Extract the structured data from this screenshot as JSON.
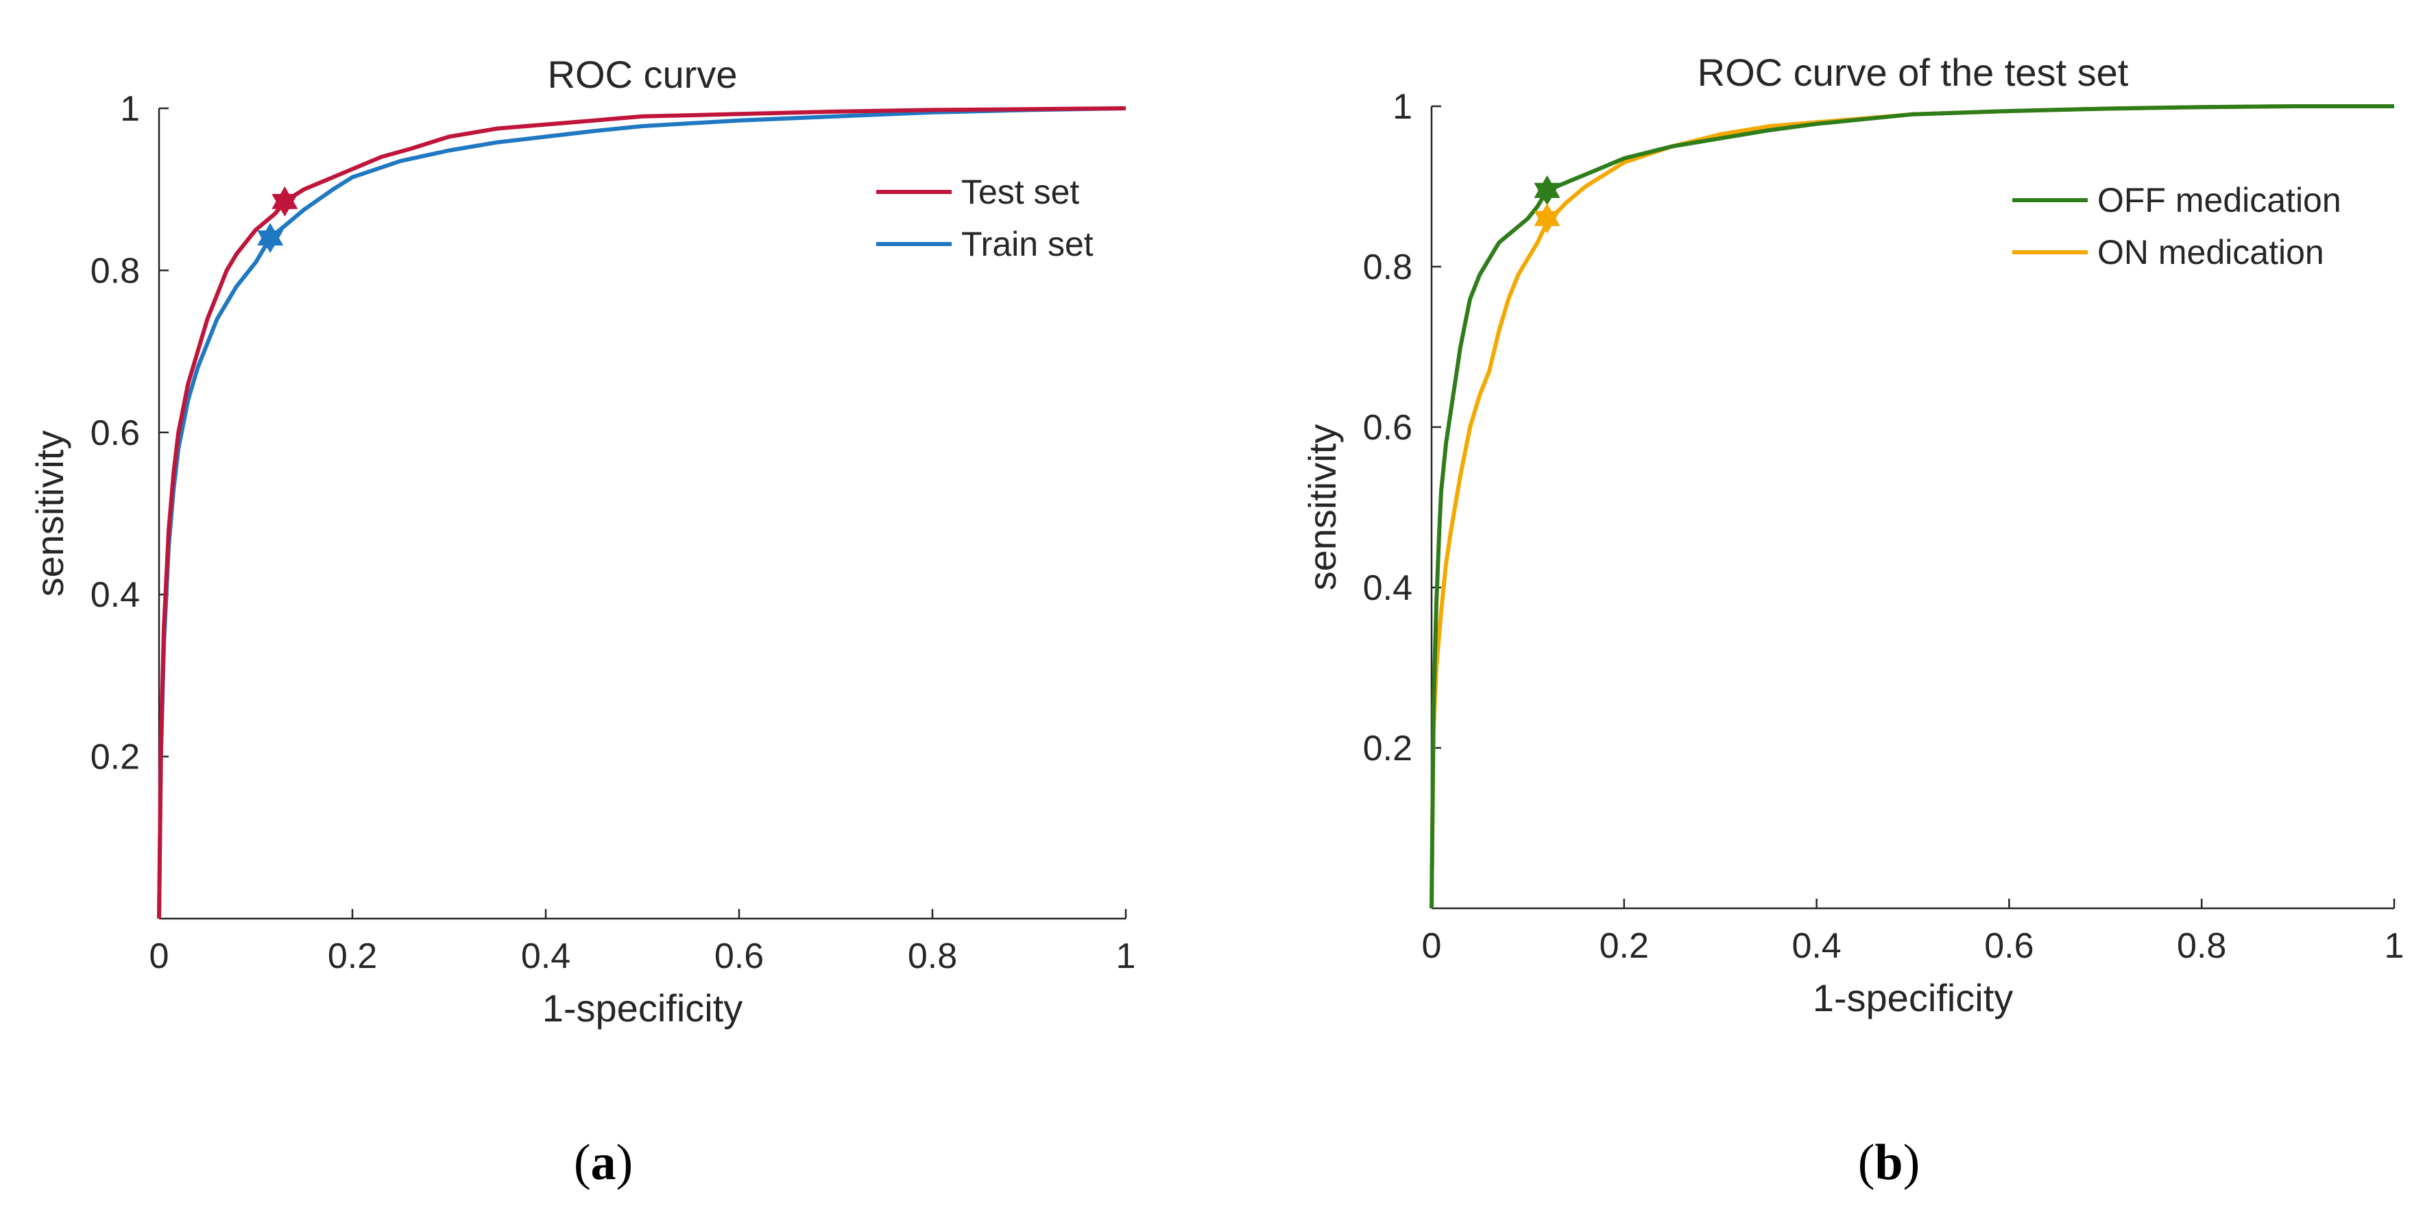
{
  "chart_data": [
    {
      "type": "line",
      "title": "ROC curve",
      "xlabel": "1-specificity",
      "ylabel": "sensitivity",
      "xlim": [
        0,
        1
      ],
      "ylim": [
        0,
        1
      ],
      "xticks": [
        "0",
        "0.2",
        "0.4",
        "0.6",
        "0.8",
        "1"
      ],
      "yticks": [
        "0.2",
        "0.4",
        "0.6",
        "0.8",
        "1"
      ],
      "grid": false,
      "legend_position": "top-right",
      "panel_label": "a",
      "series": [
        {
          "name": "Test set",
          "color": "#c0153a",
          "x": [
            0,
            0.002,
            0.005,
            0.01,
            0.015,
            0.02,
            0.03,
            0.04,
            0.05,
            0.06,
            0.07,
            0.08,
            0.1,
            0.12,
            0.13,
            0.15,
            0.18,
            0.2,
            0.23,
            0.26,
            0.3,
            0.35,
            0.4,
            0.45,
            0.5,
            0.6,
            0.7,
            0.8,
            0.9,
            1.0
          ],
          "y": [
            0,
            0.22,
            0.36,
            0.48,
            0.55,
            0.6,
            0.66,
            0.7,
            0.74,
            0.77,
            0.8,
            0.82,
            0.85,
            0.87,
            0.885,
            0.9,
            0.915,
            0.925,
            0.94,
            0.95,
            0.965,
            0.975,
            0.98,
            0.985,
            0.99,
            0.993,
            0.996,
            0.998,
            0.999,
            1.0
          ],
          "marker": {
            "x": 0.13,
            "y": 0.885
          }
        },
        {
          "name": "Train set",
          "color": "#1f78c1",
          "x": [
            0,
            0.002,
            0.005,
            0.01,
            0.015,
            0.02,
            0.03,
            0.04,
            0.05,
            0.06,
            0.07,
            0.08,
            0.1,
            0.115,
            0.13,
            0.15,
            0.18,
            0.2,
            0.25,
            0.3,
            0.35,
            0.4,
            0.45,
            0.5,
            0.6,
            0.7,
            0.8,
            0.9,
            1.0
          ],
          "y": [
            0,
            0.2,
            0.34,
            0.46,
            0.53,
            0.58,
            0.64,
            0.68,
            0.71,
            0.74,
            0.76,
            0.78,
            0.81,
            0.84,
            0.855,
            0.875,
            0.9,
            0.915,
            0.935,
            0.948,
            0.958,
            0.965,
            0.972,
            0.978,
            0.985,
            0.99,
            0.995,
            0.998,
            1.0
          ],
          "marker": {
            "x": 0.115,
            "y": 0.84
          }
        }
      ]
    },
    {
      "type": "line",
      "title": "ROC curve of the test set",
      "xlabel": "1-specificity",
      "ylabel": "sensitivity",
      "xlim": [
        0,
        1
      ],
      "ylim": [
        0,
        1
      ],
      "xticks": [
        "0",
        "0.2",
        "0.4",
        "0.6",
        "0.8",
        "1"
      ],
      "yticks": [
        "0.2",
        "0.4",
        "0.6",
        "0.8",
        "1"
      ],
      "grid": false,
      "legend_position": "top-right",
      "panel_label": "b",
      "series": [
        {
          "name": "OFF medication",
          "color": "#2e7d1a",
          "x": [
            0,
            0.002,
            0.005,
            0.008,
            0.01,
            0.015,
            0.02,
            0.025,
            0.03,
            0.035,
            0.04,
            0.05,
            0.06,
            0.07,
            0.08,
            0.09,
            0.1,
            0.11,
            0.12,
            0.14,
            0.16,
            0.18,
            0.2,
            0.25,
            0.3,
            0.35,
            0.4,
            0.5,
            0.6,
            0.7,
            0.8,
            0.9,
            1.0
          ],
          "y": [
            0,
            0.25,
            0.38,
            0.47,
            0.52,
            0.58,
            0.62,
            0.66,
            0.7,
            0.73,
            0.76,
            0.79,
            0.81,
            0.83,
            0.84,
            0.85,
            0.86,
            0.875,
            0.895,
            0.905,
            0.915,
            0.925,
            0.935,
            0.95,
            0.96,
            0.97,
            0.978,
            0.99,
            0.994,
            0.997,
            0.999,
            1.0,
            1.0
          ],
          "marker": {
            "x": 0.12,
            "y": 0.895
          }
        },
        {
          "name": "ON medication",
          "color": "#f5a800",
          "x": [
            0,
            0.002,
            0.005,
            0.01,
            0.015,
            0.02,
            0.03,
            0.04,
            0.05,
            0.06,
            0.07,
            0.08,
            0.09,
            0.1,
            0.11,
            0.12,
            0.14,
            0.16,
            0.18,
            0.2,
            0.25,
            0.3,
            0.35,
            0.4,
            0.5,
            0.6,
            0.7,
            0.8,
            0.9,
            1.0
          ],
          "y": [
            0,
            0.22,
            0.3,
            0.37,
            0.43,
            0.47,
            0.54,
            0.6,
            0.64,
            0.67,
            0.72,
            0.76,
            0.79,
            0.81,
            0.83,
            0.855,
            0.88,
            0.9,
            0.915,
            0.93,
            0.95,
            0.965,
            0.975,
            0.98,
            0.99,
            0.994,
            0.997,
            0.999,
            1.0,
            1.0
          ],
          "marker": {
            "x": 0.12,
            "y": 0.86
          }
        }
      ]
    }
  ]
}
